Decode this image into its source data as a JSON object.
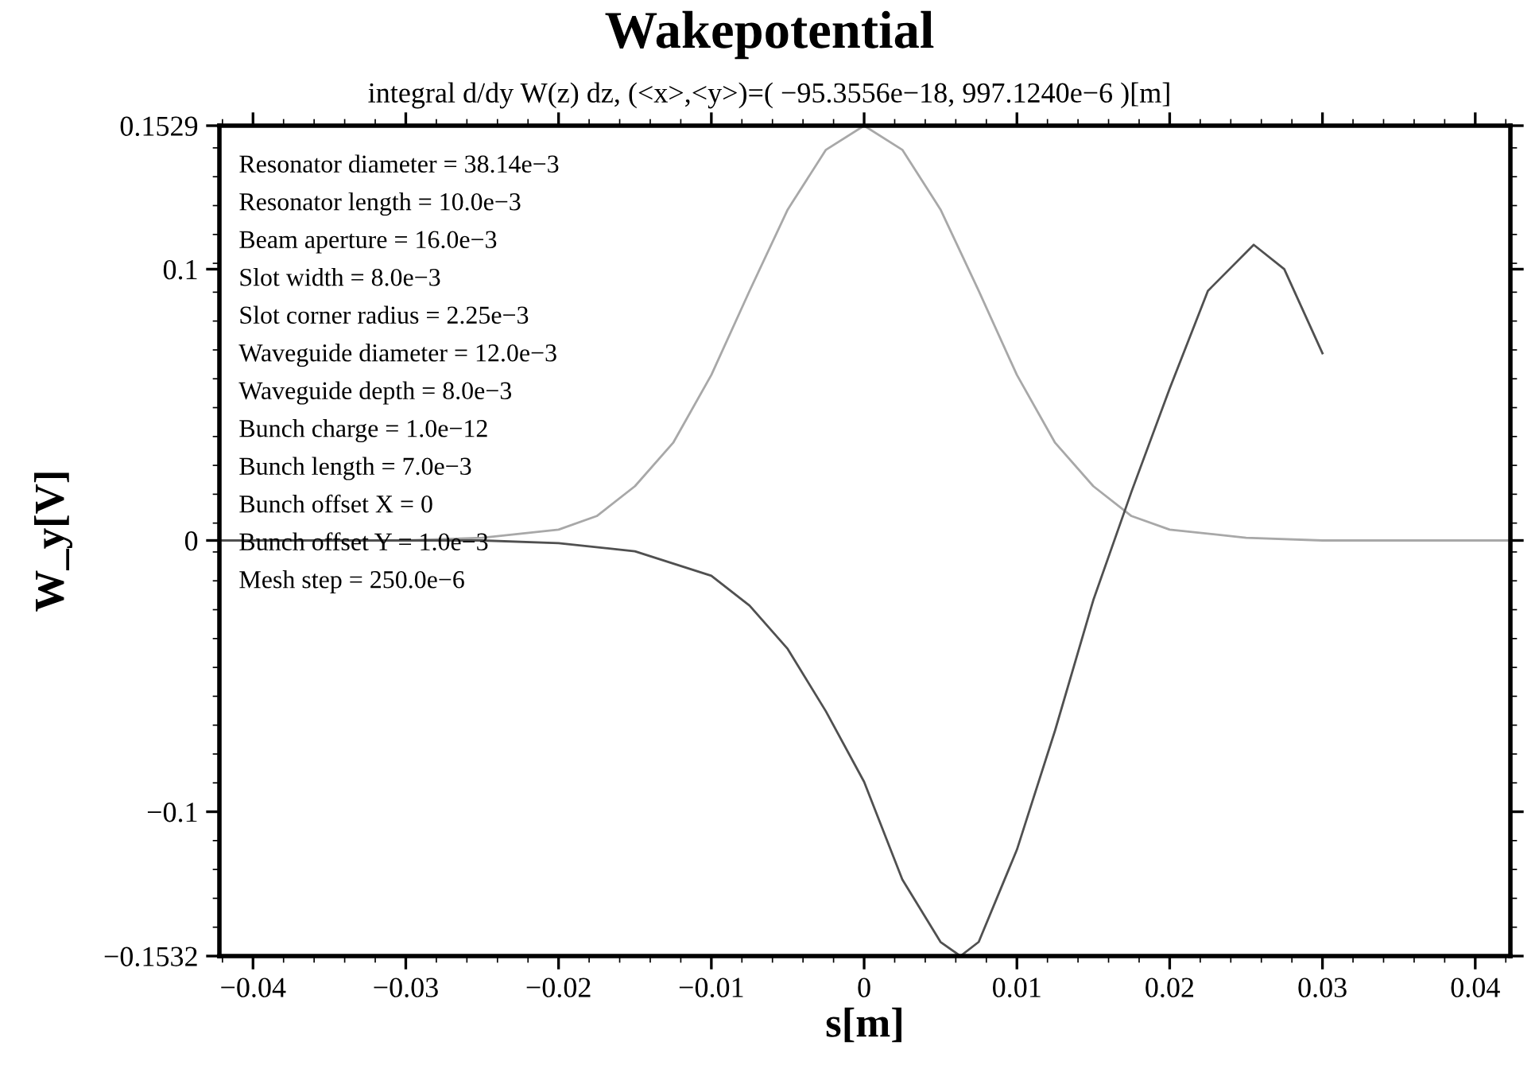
{
  "chart_data": {
    "type": "line",
    "title": "Wakepotential",
    "subtitle": "integral d/dy W(z) dz, (<x>,<y>)=( −95.3556e−18, 997.1240e−6 )[m]",
    "xlabel": "s[m]",
    "ylabel": "W_y[V]",
    "annotations": [
      "Resonator diameter = 38.14e−3",
      "Resonator length = 10.0e−3",
      "Beam aperture = 16.0e−3",
      "Slot width = 8.0e−3",
      "Slot corner radius = 2.25e−3",
      "Waveguide diameter = 12.0e−3",
      "Waveguide depth = 8.0e−3",
      "Bunch charge = 1.0e−12",
      "Bunch length = 7.0e−3",
      "Bunch offset X = 0",
      "Bunch offset Y = 1.0e−3",
      "Mesh step = 250.0e−6"
    ],
    "series": [
      {
        "color": "#a8a8a8",
        "x": [
          -0.0422,
          -0.03,
          -0.025,
          -0.02,
          -0.0175,
          -0.015,
          -0.0125,
          -0.01,
          -0.0075,
          -0.005,
          -0.0025,
          0,
          0.0025,
          0.005,
          0.0075,
          0.01,
          0.0125,
          0.015,
          0.0175,
          0.02,
          0.025,
          0.03,
          0.0423
        ],
        "values": [
          0,
          0,
          0.001,
          0.004,
          0.009,
          0.02,
          0.036,
          0.061,
          0.092,
          0.122,
          0.144,
          0.1529,
          0.144,
          0.122,
          0.092,
          0.061,
          0.036,
          0.02,
          0.009,
          0.004,
          0.001,
          0,
          0
        ]
      },
      {
        "color": "#505050",
        "x": [
          -0.0422,
          -0.025,
          -0.02,
          -0.015,
          -0.01,
          -0.0075,
          -0.005,
          -0.0025,
          0,
          0.0025,
          0.005,
          0.0063,
          0.0075,
          0.01,
          0.0125,
          0.015,
          0.0175,
          0.02,
          0.0225,
          0.0255,
          0.0275,
          0.03
        ],
        "values": [
          0,
          0,
          -0.001,
          -0.004,
          -0.013,
          -0.024,
          -0.04,
          -0.063,
          -0.089,
          -0.125,
          -0.148,
          -0.1532,
          -0.148,
          -0.114,
          -0.07,
          -0.022,
          0.018,
          0.056,
          0.092,
          0.109,
          0.1,
          0.069
        ]
      }
    ],
    "xlim": [
      -0.0422,
      0.0423
    ],
    "ylim": [
      -0.1532,
      0.1529
    ],
    "xticks": [
      -0.04,
      -0.03,
      -0.02,
      -0.01,
      0,
      0.01,
      0.02,
      0.03,
      0.04
    ],
    "yticks": [
      -0.1532,
      -0.1,
      0,
      0.1,
      0.1529
    ],
    "grid": false,
    "legend": false
  }
}
